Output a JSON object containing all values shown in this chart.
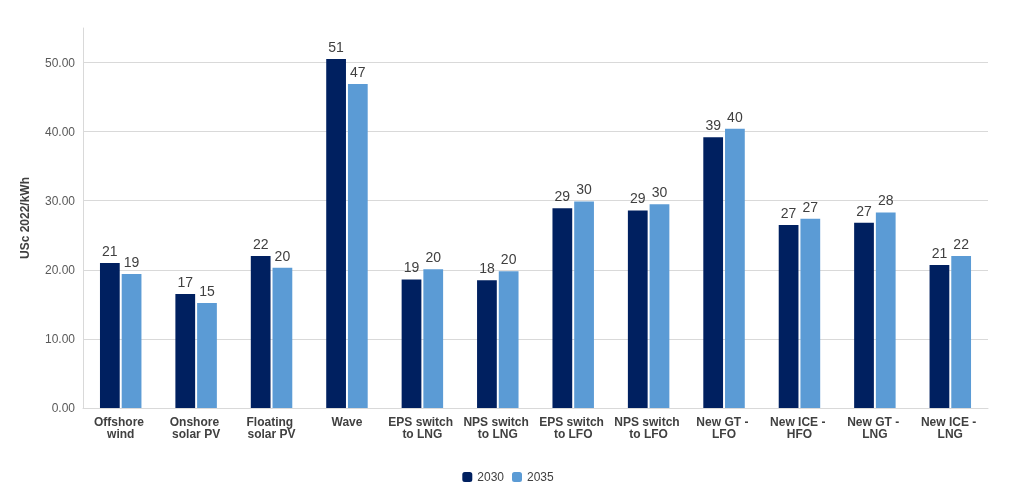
{
  "chart_data": {
    "type": "bar",
    "ylabel": "USc 2022/kWh",
    "categories": [
      "Offshore wind",
      "Onshore solar PV",
      "Floating solar PV",
      "Wave",
      "EPS switch to LNG",
      "NPS switch to LNG",
      "EPS switch to LFO",
      "NPS switch to LFO",
      "New GT - LFO",
      "New ICE - HFO",
      "New GT - LNG",
      "New ICE - LNG"
    ],
    "series": [
      {
        "name": "2030",
        "color": "#002060",
        "values": [
          21.0,
          16.5,
          22.0,
          50.5,
          18.6,
          18.5,
          28.9,
          28.6,
          39.2,
          26.5,
          26.8,
          20.7
        ],
        "value_labels": [
          "21",
          "17",
          "22",
          "51",
          "19",
          "18",
          "29",
          "29",
          "39",
          "27",
          "27",
          "21"
        ]
      },
      {
        "name": "2035",
        "color": "#5b9bd5",
        "values": [
          19.4,
          15.2,
          20.3,
          46.9,
          20.1,
          19.8,
          29.9,
          29.5,
          40.4,
          27.4,
          28.3,
          22.0
        ],
        "value_labels": [
          "19",
          "15",
          "20",
          "47",
          "20",
          "20",
          "30",
          "30",
          "40",
          "27",
          "28",
          "22"
        ]
      }
    ],
    "ylim": [
      0,
      55
    ],
    "yticks": [
      {
        "value": 0,
        "label": "0.00"
      },
      {
        "value": 10,
        "label": "10.00"
      },
      {
        "value": 20,
        "label": "20.00"
      },
      {
        "value": 30,
        "label": "30.00"
      },
      {
        "value": 40,
        "label": "40.00"
      },
      {
        "value": 50,
        "label": "50.00"
      }
    ],
    "grid": "y",
    "legend": "bottom"
  }
}
